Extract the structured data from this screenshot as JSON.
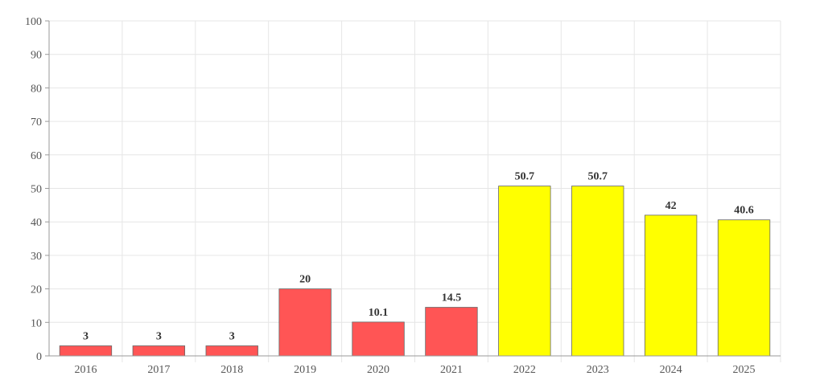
{
  "chart_data": {
    "type": "bar",
    "categories": [
      "2016",
      "2017",
      "2018",
      "2019",
      "2020",
      "2021",
      "2022",
      "2023",
      "2024",
      "2025"
    ],
    "values": [
      3,
      3,
      3,
      20,
      10.1,
      14.5,
      50.7,
      50.7,
      42,
      40.6
    ],
    "data_labels": [
      "3",
      "3",
      "3",
      "20",
      "10.1",
      "14.5",
      "50.7",
      "50.7",
      "42",
      "40.6"
    ],
    "bar_colors": [
      "#ff5555",
      "#ff5555",
      "#ff5555",
      "#ff5555",
      "#ff5555",
      "#ff5555",
      "#ffff00",
      "#ffff00",
      "#ffff00",
      "#ffff00"
    ],
    "title": "",
    "xlabel": "",
    "ylabel": "",
    "ylim": [
      0,
      100
    ],
    "yticks": [
      "0",
      "10",
      "20",
      "30",
      "40",
      "50",
      "60",
      "70",
      "80",
      "90",
      "100"
    ],
    "grid": true,
    "legend": "none"
  }
}
